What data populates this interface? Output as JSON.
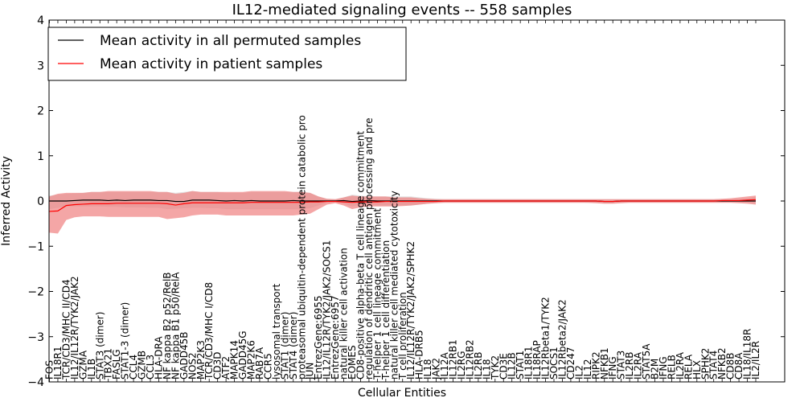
{
  "chart_data": {
    "type": "line",
    "title": "IL12-mediated signaling events -- 558 samples",
    "xlabel": "Cellular Entities",
    "ylabel": "Inferred Activity",
    "ylim": [
      -4,
      4
    ],
    "yticks": [
      -4,
      -3,
      -2,
      -1,
      0,
      1,
      2,
      3,
      4
    ],
    "grid": false,
    "legend": {
      "position": "top-left",
      "entries": [
        {
          "label": "Mean activity in all permuted samples",
          "color": "#000000"
        },
        {
          "label": "Mean activity in patient samples",
          "color": "#ff0000"
        }
      ]
    },
    "colors": {
      "permuted_line": "#000000",
      "patient_line": "#ff0000",
      "permuted_band": "#c8c8c8",
      "patient_band": "#f08080"
    },
    "categories": [
      "FOS",
      "IL18R1",
      "TCR/CD3/MHC II/CD4",
      "IL12/IL12R/TYK2/JAK2",
      "GZMA",
      "IL1B",
      "STAT3 (dimer)",
      "TBX21",
      "FASLG",
      "STAT1-3 (dimer)",
      "CCL4",
      "GZMB",
      "CCL3",
      "HLA-DRA",
      "NF kappa B2 p52/RelB",
      "NF kappa B1 p50/RelA",
      "GADD45B",
      "NOS2",
      "MAP2K3",
      "TCR/CD3/MHC I/CD8",
      "CD3D",
      "ATF2",
      "MAPK14",
      "GADD45G",
      "MAP2K6",
      "RAB7A",
      "CCR5",
      "lysosomal transport",
      "STAT1 (dimer)",
      "STAT4 (dimer)",
      "proteasomal ubiquitin-dependent protein catabolic pro",
      "JUN",
      "EntrezGene:6955",
      "IL12/IL12R/TYK2/JAK2/SOCS1",
      "EntrezGene:6957",
      "natural killer cell activation",
      "EOMES",
      "CD8-positive alpha-beta T cell lineage commitment",
      "regulation of dendritic cell antigen processing and pre",
      "T-helper 1 cell lineage commitment",
      "T-helper 1 cell differentiation",
      "natural killer cell mediated cytotoxicity",
      "T cell proliferation",
      "IL12/IL12R/TYK2/JAK2/SPHK2",
      "HLA-DRB5",
      "IL18",
      "JAK2",
      "IL12A",
      "IL12RB1",
      "IL2RG",
      "IL12RB2",
      "IL2RB",
      "IL18",
      "TYK2",
      "CD3E",
      "IL12B",
      "STAT1",
      "IL18R1",
      "IL18RAP",
      "IL12Rbeta1/TYK2",
      "SOCS1",
      "IL12Rbeta2/JAK2",
      "CD247",
      "IL2",
      "IL12",
      "RIPK2",
      "NFKB1",
      "IFNG",
      "STAT3",
      "IL2RB",
      "IL2RA",
      "STAT5A",
      "B2M",
      "IFNG",
      "RELB",
      "IL2RA",
      "RELA",
      "HLX",
      "SPHK2",
      "STAT4",
      "NFKB2",
      "CD8B",
      "CD8A",
      "IL18/IL18R",
      "IL2/IL2R"
    ],
    "series": [
      {
        "name": "Mean activity in all permuted samples",
        "values": [
          0,
          0,
          0,
          0.01,
          0.02,
          0.02,
          0.02,
          0.01,
          0.02,
          0.01,
          0.02,
          0.02,
          0.02,
          0.01,
          0.01,
          -0.01,
          -0.01,
          0.02,
          0.02,
          0.02,
          0.01,
          0,
          0.01,
          0,
          0.01,
          0,
          0,
          0,
          0,
          0.01,
          0,
          0,
          0,
          0,
          0,
          0.01,
          -0.01,
          0,
          0.01,
          0,
          0,
          0,
          0,
          0,
          0,
          0,
          0,
          0,
          0,
          0,
          0,
          0,
          0,
          0,
          0,
          0,
          0,
          0,
          0,
          0,
          0,
          0,
          0,
          0,
          0,
          0,
          -0.01,
          -0.01,
          0,
          0,
          0,
          0,
          0,
          0,
          0,
          0,
          0,
          0,
          0,
          0,
          0,
          0,
          0,
          0,
          0
        ],
        "lower": [
          -0.18,
          -0.15,
          -0.12,
          -0.12,
          -0.12,
          -0.12,
          -0.12,
          -0.13,
          -0.13,
          -0.14,
          -0.14,
          -0.14,
          -0.15,
          -0.15,
          -0.18,
          -0.17,
          -0.16,
          -0.15,
          -0.15,
          -0.16,
          -0.16,
          -0.18,
          -0.18,
          -0.18,
          -0.18,
          -0.18,
          -0.18,
          -0.18,
          -0.18,
          -0.18,
          -0.18,
          -0.16,
          -0.1,
          -0.04,
          -0.02,
          -0.06,
          -0.12,
          -0.08,
          -0.08,
          -0.1,
          -0.1,
          -0.1,
          -0.1,
          -0.1,
          -0.08,
          -0.06,
          -0.04,
          -0.03,
          -0.03,
          -0.03,
          -0.03,
          -0.03,
          -0.03,
          -0.03,
          -0.03,
          -0.03,
          -0.03,
          -0.03,
          -0.03,
          -0.03,
          -0.03,
          -0.03,
          -0.03,
          -0.03,
          -0.04,
          -0.04,
          -0.05,
          -0.05,
          -0.04,
          -0.03,
          -0.03,
          -0.03,
          -0.03,
          -0.03,
          -0.03,
          -0.03,
          -0.03,
          -0.03,
          -0.03,
          -0.03,
          -0.03,
          -0.03,
          -0.03,
          -0.03,
          -0.05
        ],
        "upper": [
          0.12,
          0.14,
          0.16,
          0.17,
          0.18,
          0.2,
          0.2,
          0.2,
          0.2,
          0.2,
          0.2,
          0.2,
          0.2,
          0.2,
          0.2,
          0.18,
          0.2,
          0.22,
          0.2,
          0.2,
          0.2,
          0.18,
          0.18,
          0.18,
          0.2,
          0.2,
          0.2,
          0.2,
          0.2,
          0.2,
          0.2,
          0.18,
          0.1,
          0.05,
          0.04,
          0.08,
          0.14,
          0.12,
          0.1,
          0.1,
          0.1,
          0.1,
          0.1,
          0.1,
          0.08,
          0.06,
          0.05,
          0.04,
          0.04,
          0.04,
          0.04,
          0.04,
          0.04,
          0.04,
          0.04,
          0.04,
          0.04,
          0.04,
          0.04,
          0.04,
          0.04,
          0.04,
          0.04,
          0.04,
          0.04,
          0.04,
          0.04,
          0.04,
          0.04,
          0.04,
          0.04,
          0.04,
          0.04,
          0.04,
          0.04,
          0.04,
          0.04,
          0.04,
          0.04,
          0.04,
          0.04,
          0.04,
          0.05,
          0.06,
          0.1
        ]
      },
      {
        "name": "Mean activity in patient samples",
        "values": [
          -0.23,
          -0.22,
          -0.1,
          -0.08,
          -0.07,
          -0.06,
          -0.06,
          -0.06,
          -0.05,
          -0.05,
          -0.05,
          -0.05,
          -0.05,
          -0.05,
          -0.06,
          -0.09,
          -0.06,
          -0.04,
          -0.04,
          -0.04,
          -0.04,
          -0.04,
          -0.04,
          -0.04,
          -0.03,
          -0.03,
          -0.03,
          -0.03,
          -0.03,
          -0.03,
          -0.03,
          -0.02,
          -0.02,
          -0.01,
          -0.01,
          -0.02,
          -0.03,
          -0.02,
          -0.02,
          -0.02,
          -0.01,
          -0.01,
          -0.01,
          -0.01,
          -0.01,
          -0.01,
          -0.01,
          0,
          0,
          0,
          0,
          0,
          0,
          0,
          0,
          0,
          0,
          0,
          0,
          0,
          0,
          0,
          0,
          0,
          0,
          0,
          -0.01,
          -0.01,
          0,
          0,
          0,
          0,
          0,
          0,
          0,
          0,
          0,
          0,
          0,
          0,
          0.01,
          0.01,
          0.01,
          0.02,
          0.03
        ],
        "lower": [
          -0.7,
          -0.72,
          -0.42,
          -0.36,
          -0.34,
          -0.34,
          -0.34,
          -0.35,
          -0.35,
          -0.35,
          -0.35,
          -0.35,
          -0.35,
          -0.35,
          -0.4,
          -0.38,
          -0.36,
          -0.32,
          -0.3,
          -0.3,
          -0.3,
          -0.32,
          -0.32,
          -0.32,
          -0.32,
          -0.32,
          -0.32,
          -0.32,
          -0.32,
          -0.32,
          -0.3,
          -0.28,
          -0.18,
          -0.08,
          -0.05,
          -0.1,
          -0.18,
          -0.14,
          -0.12,
          -0.12,
          -0.12,
          -0.12,
          -0.11,
          -0.1,
          -0.08,
          -0.06,
          -0.05,
          -0.04,
          -0.04,
          -0.04,
          -0.04,
          -0.04,
          -0.04,
          -0.04,
          -0.04,
          -0.04,
          -0.04,
          -0.04,
          -0.04,
          -0.04,
          -0.04,
          -0.04,
          -0.04,
          -0.04,
          -0.04,
          -0.05,
          -0.06,
          -0.06,
          -0.05,
          -0.04,
          -0.04,
          -0.04,
          -0.04,
          -0.04,
          -0.04,
          -0.04,
          -0.04,
          -0.04,
          -0.04,
          -0.04,
          -0.04,
          -0.04,
          -0.05,
          -0.06,
          -0.08
        ],
        "upper": [
          0.1,
          0.16,
          0.18,
          0.18,
          0.18,
          0.2,
          0.2,
          0.22,
          0.22,
          0.22,
          0.22,
          0.22,
          0.22,
          0.2,
          0.2,
          0.16,
          0.18,
          0.22,
          0.2,
          0.2,
          0.2,
          0.2,
          0.2,
          0.2,
          0.22,
          0.22,
          0.22,
          0.22,
          0.22,
          0.2,
          0.2,
          0.18,
          0.1,
          0.05,
          0.04,
          0.08,
          0.12,
          0.1,
          0.1,
          0.1,
          0.1,
          0.08,
          0.08,
          0.08,
          0.06,
          0.05,
          0.04,
          0.04,
          0.04,
          0.04,
          0.04,
          0.04,
          0.04,
          0.04,
          0.04,
          0.04,
          0.04,
          0.04,
          0.04,
          0.04,
          0.04,
          0.04,
          0.04,
          0.04,
          0.04,
          0.04,
          0.04,
          0.04,
          0.04,
          0.04,
          0.04,
          0.04,
          0.04,
          0.04,
          0.04,
          0.04,
          0.04,
          0.04,
          0.04,
          0.04,
          0.05,
          0.06,
          0.08,
          0.1,
          0.12
        ]
      }
    ]
  }
}
